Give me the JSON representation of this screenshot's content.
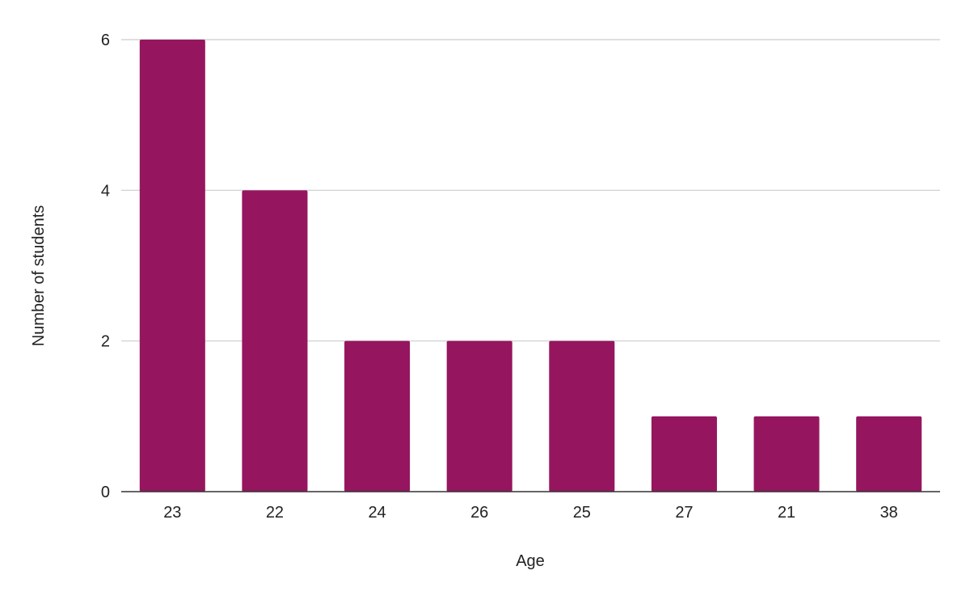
{
  "chart_data": {
    "type": "bar",
    "title": "",
    "xlabel": "Age",
    "ylabel": "Number of students",
    "categories": [
      "23",
      "22",
      "24",
      "26",
      "25",
      "27",
      "21",
      "38"
    ],
    "values": [
      6,
      4,
      2,
      2,
      2,
      1,
      1,
      1
    ],
    "ylim": [
      0,
      6
    ],
    "yticks": [
      0,
      2,
      4,
      6
    ],
    "grid": true,
    "legend": "none",
    "bar_color": "#95165f",
    "grid_color": "#cccccc",
    "axis_color": "#333333"
  }
}
